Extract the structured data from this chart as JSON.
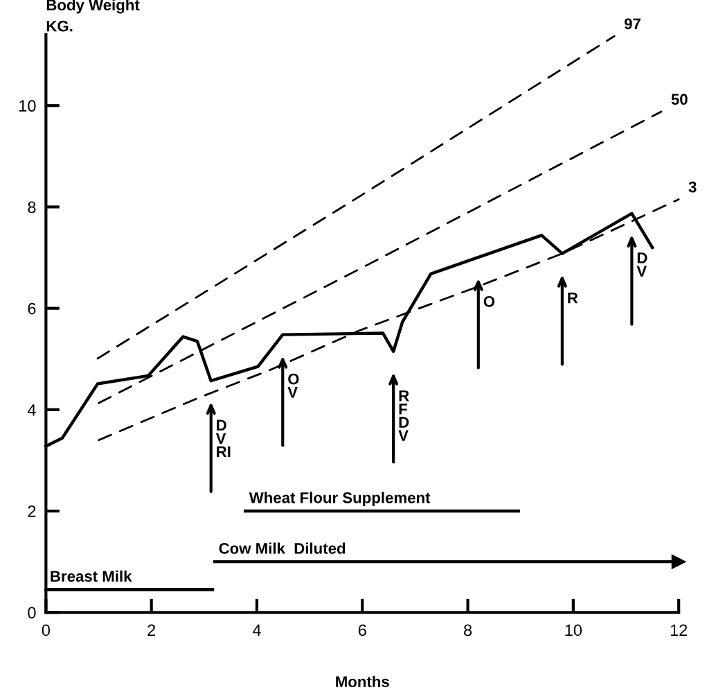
{
  "chart_data": {
    "type": "line",
    "xlabel": "Months",
    "ylabel": "Body Weight\nKG.",
    "xlim": [
      0,
      12
    ],
    "ylim": [
      0,
      11.4
    ],
    "xticks": [
      0,
      2,
      4,
      6,
      8,
      10,
      12
    ],
    "yticks": [
      0,
      2,
      4,
      6,
      8,
      10
    ],
    "grid": false,
    "legend": false,
    "line_style": "solid",
    "marker": "none",
    "series": [
      {
        "color": "#000000",
        "x": [
          0,
          0.31,
          0.98,
          1.94,
          2.6,
          2.87,
          3.13,
          4.02,
          4.49,
          6.39,
          6.59,
          6.76,
          7.3,
          9.4,
          9.79,
          11.11,
          11.5
        ],
        "values": [
          3.28,
          3.44,
          4.51,
          4.67,
          5.44,
          5.35,
          4.57,
          4.85,
          5.48,
          5.51,
          5.15,
          5.73,
          6.68,
          7.44,
          7.08,
          7.87,
          7.2
        ]
      },
      {
        "name": "97",
        "color": "#000000",
        "line_style": "dashed",
        "x": [
          0.98,
          5.95,
          10.78
        ],
        "values": [
          5.01,
          8.21,
          11.37
        ]
      },
      {
        "name": "50",
        "color": "#000000",
        "line_style": "dashed",
        "x": [
          1.0,
          5.9,
          11.67
        ],
        "values": [
          4.13,
          6.75,
          9.88
        ]
      },
      {
        "name": "3",
        "color": "#000000",
        "line_style": "dashed",
        "x": [
          1.0,
          2.91,
          4.29,
          5.94,
          8.22,
          9.79,
          12.0
        ],
        "values": [
          3.4,
          4.24,
          4.8,
          5.56,
          6.44,
          7.08,
          8.15
        ]
      },
      {
        "name": "Breast Milk",
        "color": "#000000",
        "x": [
          0,
          3.16
        ],
        "values": [
          0.45,
          0.45
        ]
      },
      {
        "name": "Wheat Flour Supplement",
        "color": "#000000",
        "x": [
          3.78,
          8.96
        ],
        "values": [
          2.0,
          2.0
        ]
      },
      {
        "name": "Cow Milk  Diluted",
        "color": "#000000",
        "marker": "triangle",
        "x": [
          3.2,
          12.0
        ],
        "values": [
          1.0,
          1.0
        ]
      }
    ],
    "annotations": [
      {
        "text": "D\nV\nRI",
        "x": 3.13,
        "y": 4.57
      },
      {
        "text": "O\nV",
        "x": 4.49,
        "y": 5.48
      },
      {
        "text": "R\nF\nD\nV",
        "x": 6.59,
        "y": 5.15
      },
      {
        "text": "O",
        "x": 8.2,
        "y": 7.01
      },
      {
        "text": "R",
        "x": 9.79,
        "y": 7.08
      },
      {
        "text": "D\nV",
        "x": 11.11,
        "y": 7.87
      }
    ]
  }
}
